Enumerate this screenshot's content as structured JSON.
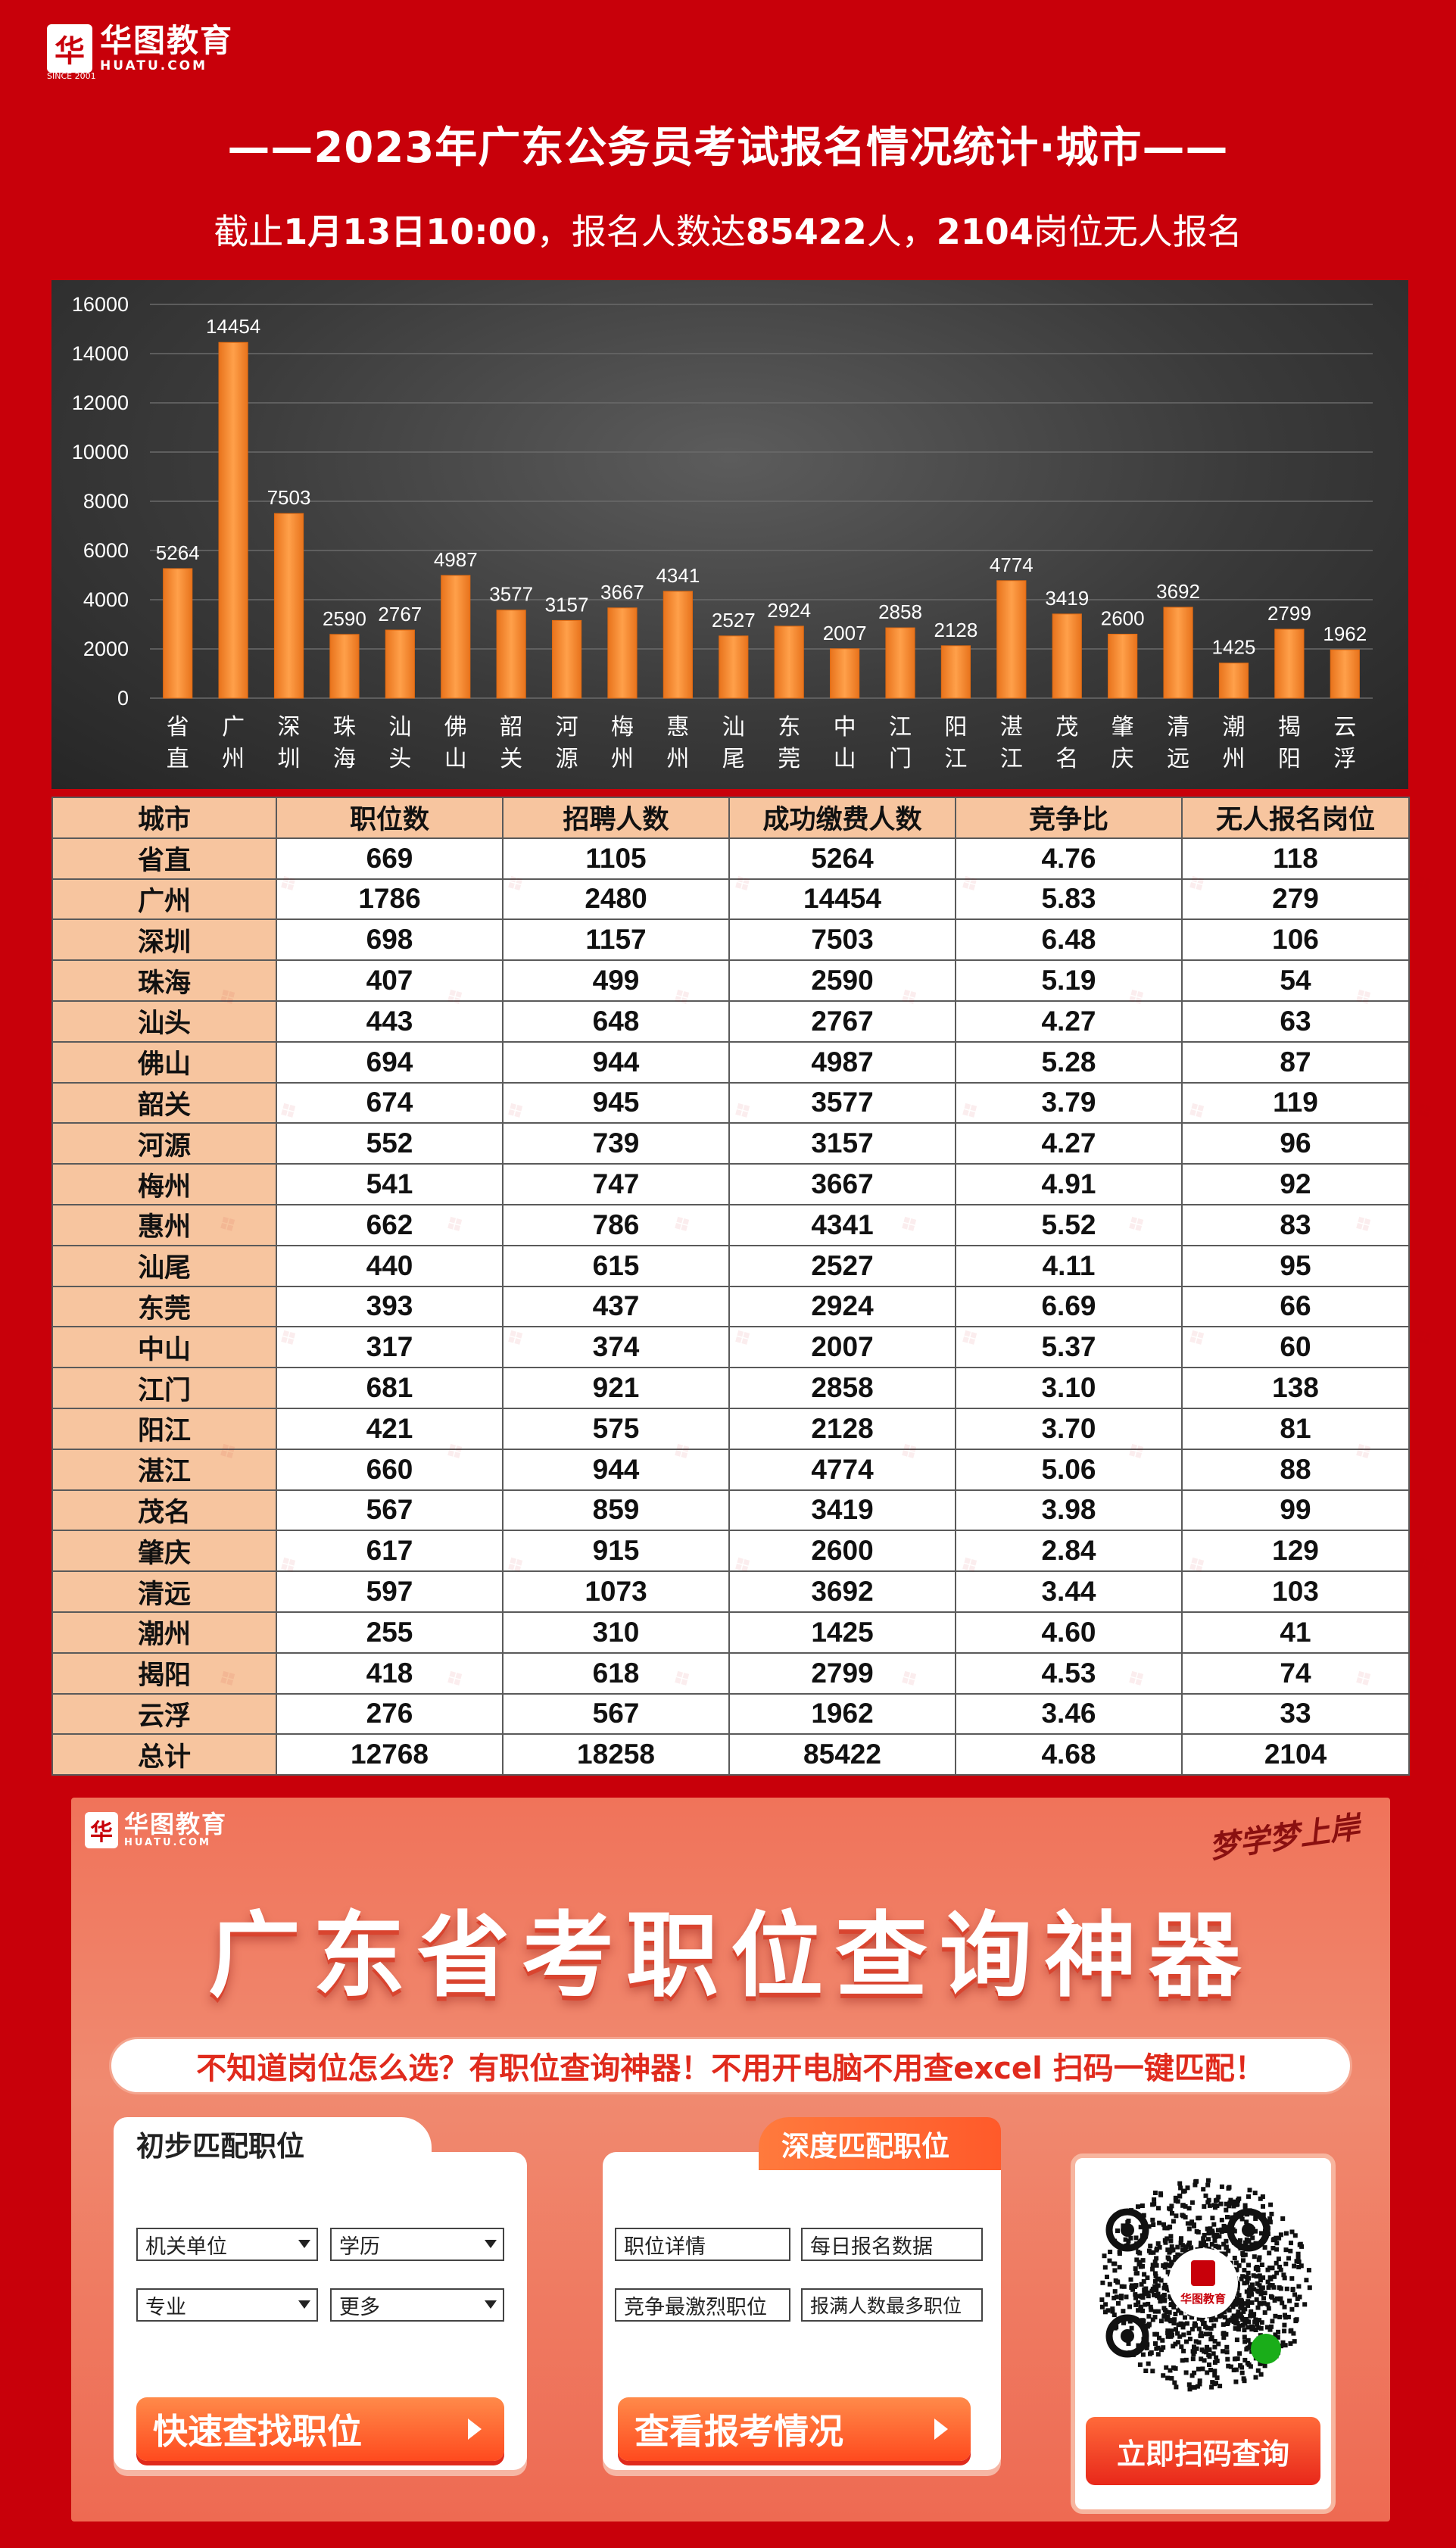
{
  "brand": {
    "name_cn": "华图教育",
    "name_en": "HUATU.COM",
    "since": "SINCE 2001"
  },
  "title": "——2023年广东公务员考试报名情况统计·城市——",
  "subtitle": {
    "prefix": "截止",
    "date": "1月13日10:00",
    "mid": "，报名人数达",
    "count": "85422",
    "mid2": "人，",
    "unfilled": "2104",
    "suffix": "岗位无人报名"
  },
  "chart_data": {
    "type": "bar",
    "title": "",
    "xlabel": "",
    "ylabel": "",
    "ylim": [
      0,
      16000
    ],
    "yticks": [
      "0",
      "2000",
      "4000",
      "6000",
      "8000",
      "10000",
      "12000",
      "14000",
      "16000"
    ],
    "categories": [
      "省直",
      "广州",
      "深圳",
      "珠海",
      "汕头",
      "佛山",
      "韶关",
      "河源",
      "梅州",
      "惠州",
      "汕尾",
      "东莞",
      "中山",
      "江门",
      "阳江",
      "湛江",
      "茂名",
      "肇庆",
      "清远",
      "潮州",
      "揭阳",
      "云浮"
    ],
    "values": [
      5264,
      14454,
      7503,
      2590,
      2767,
      4987,
      3577,
      3157,
      3667,
      4341,
      2527,
      2924,
      2007,
      2858,
      2128,
      4774,
      3419,
      2600,
      3692,
      1425,
      2799,
      1962
    ],
    "colors": {
      "bar": "#f28a2e",
      "bar_dark": "#e06a12",
      "label": "#ffffff",
      "grid": "#6a6a6a"
    }
  },
  "table": {
    "headers": [
      "城市",
      "职位数",
      "招聘人数",
      "成功缴费人数",
      "竞争比",
      "无人报名岗位"
    ],
    "rows": [
      [
        "省直",
        "669",
        "1105",
        "5264",
        "4.76",
        "118"
      ],
      [
        "广州",
        "1786",
        "2480",
        "14454",
        "5.83",
        "279"
      ],
      [
        "深圳",
        "698",
        "1157",
        "7503",
        "6.48",
        "106"
      ],
      [
        "珠海",
        "407",
        "499",
        "2590",
        "5.19",
        "54"
      ],
      [
        "汕头",
        "443",
        "648",
        "2767",
        "4.27",
        "63"
      ],
      [
        "佛山",
        "694",
        "944",
        "4987",
        "5.28",
        "87"
      ],
      [
        "韶关",
        "674",
        "945",
        "3577",
        "3.79",
        "119"
      ],
      [
        "河源",
        "552",
        "739",
        "3157",
        "4.27",
        "96"
      ],
      [
        "梅州",
        "541",
        "747",
        "3667",
        "4.91",
        "92"
      ],
      [
        "惠州",
        "662",
        "786",
        "4341",
        "5.52",
        "83"
      ],
      [
        "汕尾",
        "440",
        "615",
        "2527",
        "4.11",
        "95"
      ],
      [
        "东莞",
        "393",
        "437",
        "2924",
        "6.69",
        "66"
      ],
      [
        "中山",
        "317",
        "374",
        "2007",
        "5.37",
        "60"
      ],
      [
        "江门",
        "681",
        "921",
        "2858",
        "3.10",
        "138"
      ],
      [
        "阳江",
        "421",
        "575",
        "2128",
        "3.70",
        "81"
      ],
      [
        "湛江",
        "660",
        "944",
        "4774",
        "5.06",
        "88"
      ],
      [
        "茂名",
        "567",
        "859",
        "3419",
        "3.98",
        "99"
      ],
      [
        "肇庆",
        "617",
        "915",
        "2600",
        "2.84",
        "129"
      ],
      [
        "清远",
        "597",
        "1073",
        "3692",
        "3.44",
        "103"
      ],
      [
        "潮州",
        "255",
        "310",
        "1425",
        "4.60",
        "41"
      ],
      [
        "揭阳",
        "418",
        "618",
        "2799",
        "4.53",
        "74"
      ],
      [
        "云浮",
        "276",
        "567",
        "1962",
        "3.46",
        "33"
      ],
      [
        "总计",
        "12768",
        "18258",
        "85422",
        "4.68",
        "2104"
      ]
    ]
  },
  "promo": {
    "slogan": "梦学梦上岸",
    "title": "广东省考职位查询神器",
    "banner": "不知道岗位怎么选？有职位查询神器！不用开电脑不用查excel 扫码一键匹配！",
    "card1": {
      "heading": "初步匹配职位",
      "fields": [
        "机关单位",
        "学历",
        "专业",
        "更多"
      ],
      "button": "快速查找职位"
    },
    "card2": {
      "heading": "深度匹配职位",
      "fields": [
        "职位详情",
        "每日报名数据",
        "竞争最激烈职位",
        "报满人数最多职位"
      ],
      "button": "查看报考情况"
    },
    "qr": {
      "center_label": "华图教育",
      "button": "立即扫码查询"
    }
  }
}
